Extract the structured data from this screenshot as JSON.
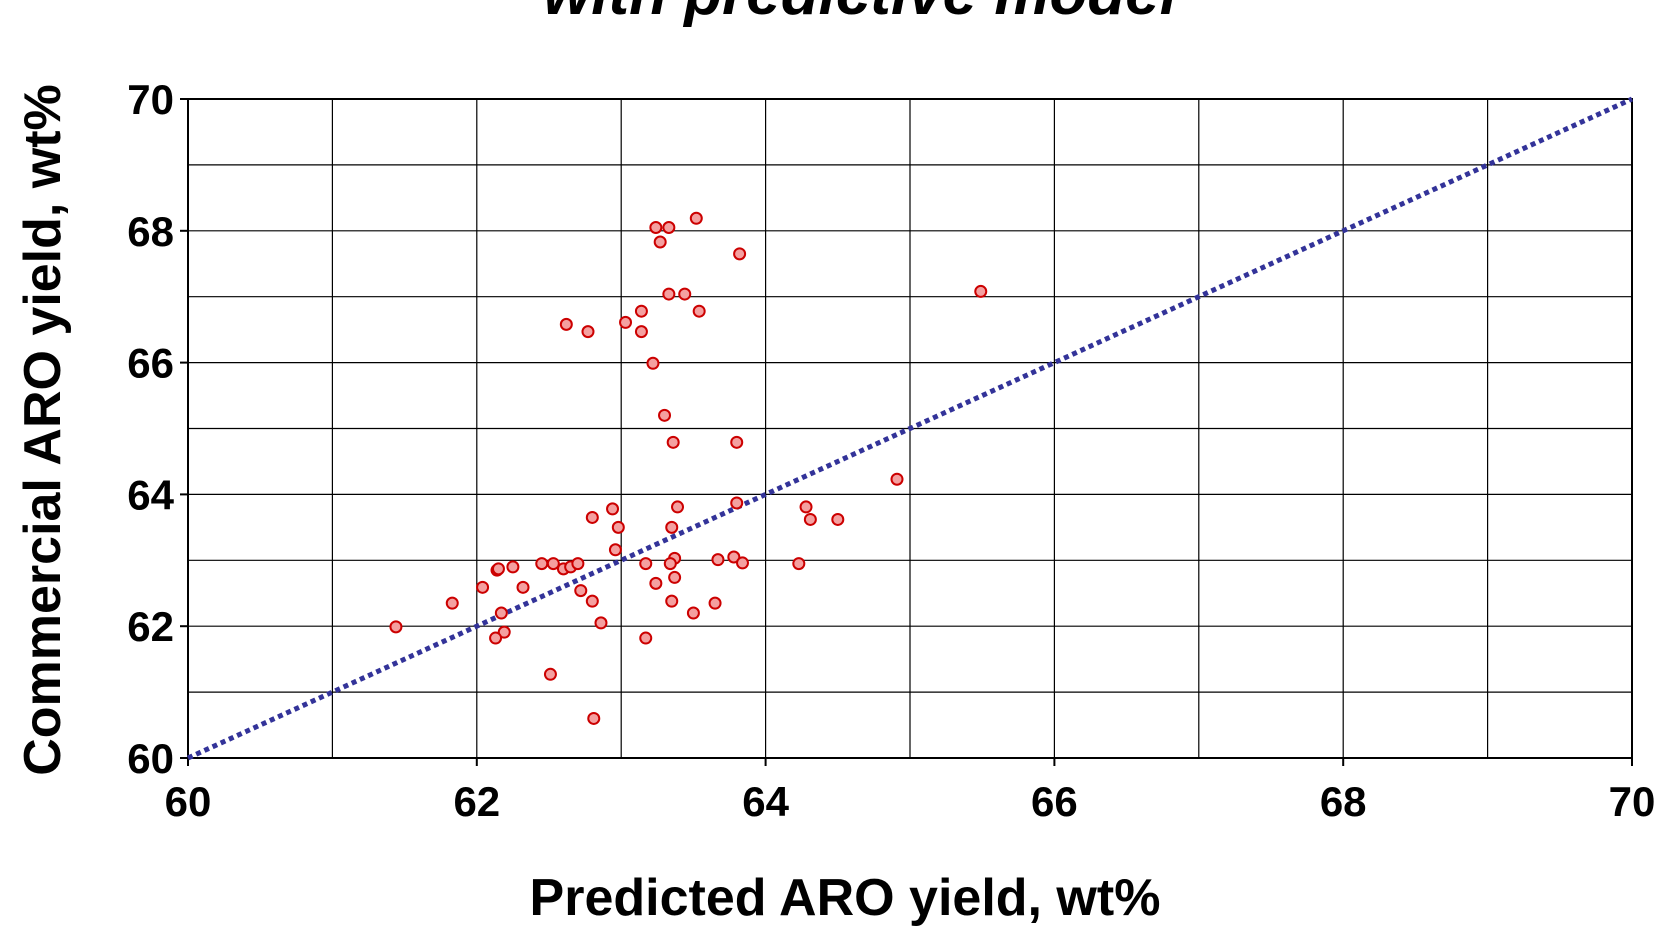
{
  "chart_data": {
    "type": "scatter",
    "title": "with predictive model",
    "xlabel": "Predicted ARO yield, wt%",
    "ylabel": "Commercial ARO yield, wt%",
    "xlim": [
      60,
      70
    ],
    "ylim": [
      60,
      70
    ],
    "xticks": [
      60,
      62,
      64,
      66,
      68,
      70
    ],
    "yticks": [
      60,
      62,
      64,
      66,
      68,
      70
    ],
    "minor_xticks": [
      61,
      63,
      65,
      67,
      69
    ],
    "minor_yticks": [
      61,
      63,
      65,
      67,
      69
    ],
    "grid": true,
    "identity_line": {
      "x": [
        60,
        70
      ],
      "y": [
        60,
        70
      ],
      "color": "#333399"
    },
    "series": [
      {
        "color": "#cc0000",
        "x": [
          61.44,
          61.83,
          62.04,
          62.14,
          62.15,
          62.17,
          62.19,
          62.13,
          62.25,
          62.32,
          62.45,
          62.53,
          62.6,
          62.65,
          62.7,
          62.72,
          62.51,
          62.62,
          62.77,
          62.8,
          62.8,
          62.86,
          62.81,
          62.94,
          62.98,
          62.96,
          63.03,
          63.14,
          63.14,
          63.22,
          63.24,
          63.27,
          63.33,
          63.3,
          63.17,
          63.17,
          63.24,
          63.33,
          63.44,
          63.54,
          63.52,
          63.36,
          63.39,
          63.35,
          63.37,
          63.34,
          63.37,
          63.35,
          63.5,
          63.65,
          63.67,
          63.78,
          63.84,
          63.8,
          63.8,
          63.82,
          64.23,
          64.28,
          64.31,
          64.5,
          64.91,
          65.49
        ],
        "values": [
          61.99,
          62.35,
          62.59,
          62.85,
          62.87,
          62.2,
          61.91,
          61.82,
          62.9,
          62.59,
          62.95,
          62.95,
          62.87,
          62.9,
          62.95,
          62.54,
          61.27,
          66.58,
          66.47,
          63.65,
          62.38,
          62.05,
          60.6,
          63.78,
          63.5,
          63.16,
          66.61,
          66.78,
          66.47,
          65.99,
          68.05,
          67.83,
          68.05,
          65.2,
          62.95,
          61.82,
          62.65,
          67.04,
          67.04,
          66.78,
          68.19,
          64.79,
          63.81,
          63.5,
          63.03,
          62.95,
          62.74,
          62.38,
          62.2,
          62.35,
          63.01,
          63.05,
          62.96,
          63.87,
          64.79,
          67.65,
          62.95,
          63.81,
          63.62,
          63.62,
          64.23,
          67.08
        ]
      }
    ]
  }
}
